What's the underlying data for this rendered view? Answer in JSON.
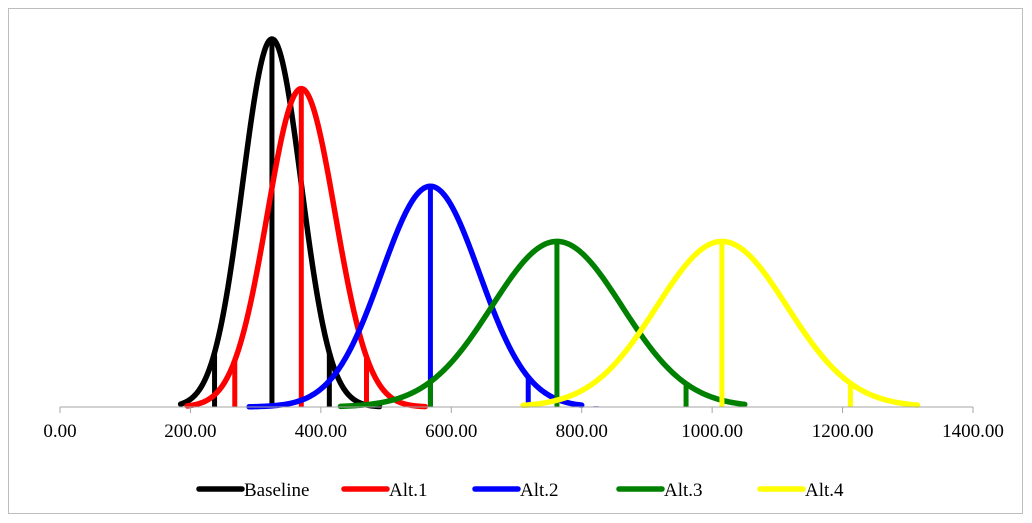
{
  "chart_data": {
    "type": "line",
    "title": "",
    "xlabel": "",
    "ylabel": "",
    "xlim": [
      0,
      1400
    ],
    "x_ticks": [
      "0.00",
      "200.00",
      "400.00",
      "600.00",
      "800.00",
      "1000.00",
      "1200.00",
      "1400.00"
    ],
    "y_axis_visible": false,
    "grid": false,
    "legend_position": "bottom",
    "series": [
      {
        "name": "Baseline",
        "color": "#000000",
        "mean": 325,
        "sd": 45,
        "range": [
          185,
          490
        ],
        "markers": [
          237,
          325,
          413
        ]
      },
      {
        "name": "Alt.1",
        "color": "#ff0000",
        "mean": 370,
        "sd": 52,
        "range": [
          195,
          560
        ],
        "markers": [
          268,
          370,
          470
        ]
      },
      {
        "name": "Alt.2",
        "color": "#0000ff",
        "mean": 568,
        "sd": 75,
        "range": [
          290,
          800
        ],
        "markers": [
          568,
          718,
          822
        ]
      },
      {
        "name": "Alt.3",
        "color": "#008000",
        "mean": 762,
        "sd": 100,
        "range": [
          430,
          1050
        ],
        "markers": [
          568,
          762,
          960
        ]
      },
      {
        "name": "Alt.4",
        "color": "#ffff00",
        "mean": 1015,
        "sd": 100,
        "range": [
          710,
          1315
        ],
        "markers": [
          1015,
          1212
        ]
      }
    ]
  }
}
